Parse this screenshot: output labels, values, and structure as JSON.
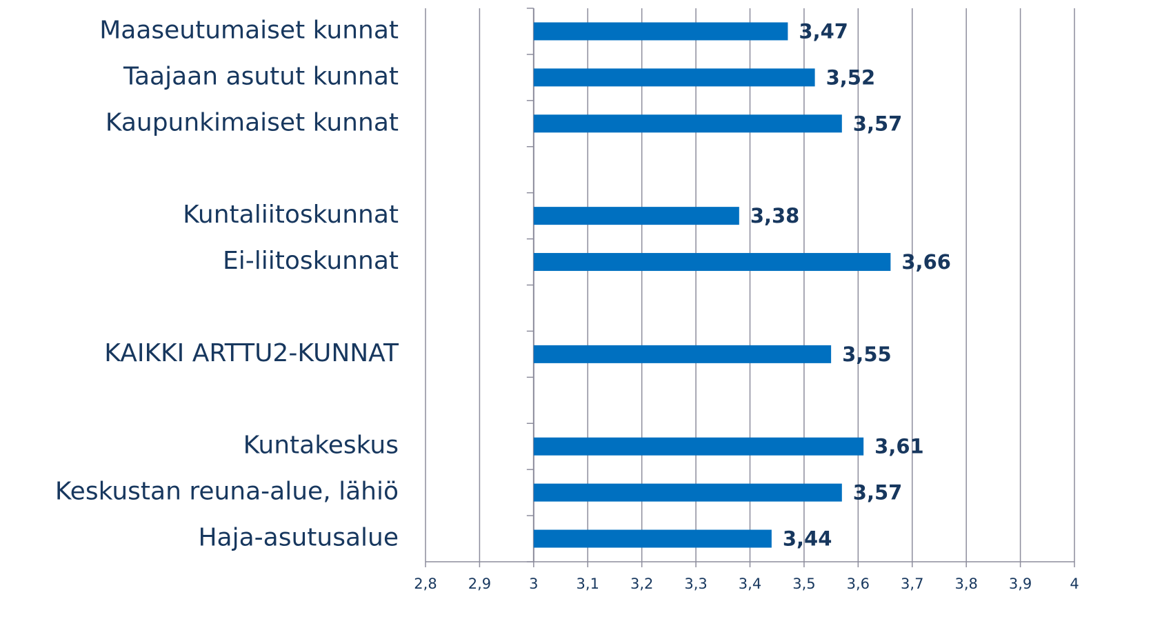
{
  "chart_data": {
    "type": "bar",
    "orientation": "horizontal",
    "categories": [
      "Maaseutumaiset kunnat",
      "Taajaan asutut kunnat",
      "Kaupunkimaiset kunnat",
      null,
      "Kuntaliitoskunnat",
      "Ei-liitoskunnat",
      null,
      "KAIKKI ARTTU2-KUNNAT",
      null,
      "Kuntakeskus",
      "Keskustan reuna-alue, lähiö",
      "Haja-asutusalue"
    ],
    "values": [
      3.47,
      3.52,
      3.57,
      null,
      3.38,
      3.66,
      null,
      3.55,
      null,
      3.61,
      3.57,
      3.44
    ],
    "value_labels": [
      "3,47",
      "3,52",
      "3,57",
      null,
      "3,38",
      "3,66",
      null,
      "3,55",
      null,
      "3,61",
      "3,57",
      "3,44"
    ],
    "color": "#0070c0",
    "xlim": [
      2.8,
      4
    ],
    "xticks": [
      {
        "value": 2.8,
        "label": "2,8"
      },
      {
        "value": 2.9,
        "label": "2,9"
      },
      3,
      {
        "value": 3.1,
        "label": "3,1"
      },
      {
        "value": 3.2,
        "label": "3,2"
      },
      {
        "value": 3.3,
        "label": "3,3"
      },
      {
        "value": 3.4,
        "label": "3,4"
      },
      {
        "value": 3.5,
        "label": "3,5"
      },
      {
        "value": 3.6,
        "label": "3,6"
      },
      {
        "value": 3.7,
        "label": "3,7"
      },
      {
        "value": 3.8,
        "label": "3,8"
      },
      {
        "value": 3.9,
        "label": "3,9"
      },
      4
    ],
    "axis_crosses": 3,
    "grid": true
  }
}
